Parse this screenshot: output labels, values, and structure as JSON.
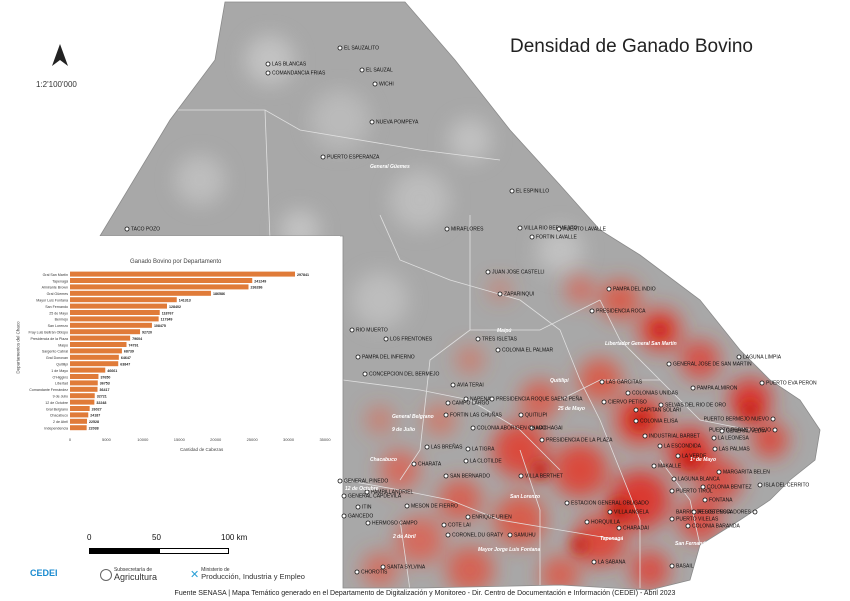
{
  "title": "Densidad de Ganado Bovino",
  "scale_ratio": "1:2'100'000",
  "scale_bar": {
    "labels": [
      "0",
      "50",
      "100 km"
    ]
  },
  "footer": "Fuente SENASA | Mapa Temático generado en el Departamento de Digitalización y Monitoreo - Dir. Centro de Documentación e Información (CEDEI) - Abril 2023",
  "logos": {
    "cedei": "CEDEI",
    "agricultura_small": "Subsecretaría de",
    "agricultura": "Agricultura",
    "produccion_small": "Ministerio de",
    "produccion": "Producción, Industria y Empleo"
  },
  "colors": {
    "land": "#a9a9a9",
    "heat": "#e63a2a",
    "bar": "#e07b39",
    "sea": "#ffffff"
  },
  "north_icon": "north-arrow-icon",
  "places": [
    "EL SAUZALITO",
    "LAS BLANCAS",
    "EL SAUZAL",
    "COMANDANCIA FRIAS",
    "WICHI",
    "NUEVA POMPEYA",
    "PUERTO ESPERANZA",
    "EL ESPINILLO",
    "TACO POZO",
    "MIRAFLORES",
    "VILLA RIO BERMEJITO",
    "PUERTO LAVALLE",
    "FORTIN LAVALLE",
    "JUAN JOSE CASTELLI",
    "ZAPARINQUI",
    "PAMPA DEL INDIO",
    "PRESIDENCIA ROCA",
    "RIO MUERTO",
    "LOS FRENTONES",
    "TRES ISLETAS",
    "COLONIA EL PALMAR",
    "PAMPA DEL INFIERNO",
    "LAGUNA LIMPIA",
    "GENERAL JOSE DE SAN MARTIN",
    "CONCEPCION DEL BERMEJO",
    "LAS GARCITAS",
    "PAMPA ALMIRON",
    "PUERTO EVA PERON",
    "AVIA TERAI",
    "COLONIAS UNIDAS",
    "CIERVO PETISO",
    "CAMPO LARGO",
    "NAPENAY",
    "PRESIDENCIA ROQUE SAENZ PEÑA",
    "SELVAS DEL RIO DE ORO",
    "CAPITAN SOLARI",
    "COLONIA ELISA",
    "PUERTO BERMEJO NUEVO",
    "PUERTO BERMEJO VIEJO",
    "GENERAL VEDIA",
    "LA LEONESA",
    "LAS PALMAS",
    "QUITILIPI",
    "MACHAGAI",
    "FORTIN LAS CHUÑAS",
    "GANCEDO",
    "COLONIA ABORIGEN CHACO",
    "PRESIDENCIA DE LA PLAZA",
    "INDUSTRIAL BARBET",
    "LA ESCONDIDA",
    "LA VERDE",
    "LAS BREÑAS",
    "LA TIGRA",
    "LA CLOTILDE",
    "MAKALLE",
    "CHARATA",
    "MARGARITA BELEN",
    "ISLA DEL CERRITO",
    "LAGUNA BLANCA",
    "COLONIA BENITEZ",
    "SAN BERNARDO",
    "VILLA BERTHET",
    "GENERAL PINEDO",
    "GENERAL CAPDEVILA",
    "PAMPA LANDRIEL",
    "ESTACION GENERAL OBLIGADO",
    "FONTANA",
    "PUERTO TIROL",
    "BARRIO DE LOS PESCADORES",
    "ITIN",
    "HERMOSO CAMPO",
    "CORONEL DU GRATY",
    "SAMUHU",
    "ENRIQUE URIEN",
    "VILLA ANGELA",
    "COTE LAI",
    "HORQUILLA",
    "CHARADAI",
    "RESISTENCIA",
    "PUERTO VILELAS",
    "COLONIA BARANDA",
    "SANTA SYLVINA",
    "CHOROTIS",
    "LA SABANA",
    "BASAIL",
    "MESON DE FIERRO"
  ],
  "departments": [
    "General Güemes",
    "Libertador General San Martín",
    "Maipú",
    "Quitilipi",
    "25 de Mayo",
    "General Belgrano",
    "9 de Julio",
    "1º de Mayo",
    "Chacabuco",
    "12 de Octubre",
    "San Lorenzo",
    "2 de Abril",
    "Mayor Jorge Luis Fontana",
    "Tapenagá",
    "San Fernando"
  ],
  "chart_data": {
    "type": "bar",
    "orientation": "horizontal",
    "title": "Ganado Bovino por Departamento",
    "xlabel": "Cantidad de Cabezas",
    "ylabel": "Departamentos del Chaco",
    "xlim": [
      0,
      35000
    ],
    "xticks": [
      0,
      5000,
      10000,
      15000,
      20000,
      25000,
      30000,
      35000
    ],
    "categories": [
      "Gral San Martín",
      "Tapenagá",
      "Almirante Brown",
      "Gral Güemes",
      "Mayor Luis Fontana",
      "San Fernando",
      "25 de Mayo",
      "Bermejo",
      "San Lorenzo",
      "Fray Luis Beltrán Obispo",
      "Presidencia de la Plaza",
      "Maipú",
      "Sargento Cabral",
      "Gral Donovan",
      "Quitilipi",
      "1 de Mayo",
      "O'Higgins",
      "Libertad",
      "Comandante Fernández",
      "9 de Julio",
      "12 de Octubre",
      "Gral Belgrano",
      "Chacabuco",
      "2 de Abril",
      "Independencia"
    ],
    "values": [
      297841,
      241249,
      236286,
      186586,
      141313,
      128402,
      118767,
      117349,
      108475,
      92720,
      79604,
      74791,
      68739,
      64647,
      63847,
      46661,
      37650,
      36753,
      36417,
      32721,
      32248,
      26027,
      24187,
      22528,
      22038
    ],
    "value_labels": [
      "297841",
      "241249",
      "236286",
      "186586",
      "141313",
      "128402",
      "118767",
      "117349",
      "108475",
      "92720",
      "79604",
      "74791",
      "68739",
      "64647",
      "63847",
      "46661",
      "37650",
      "36753",
      "36417",
      "32721",
      "32248",
      "26027",
      "24187",
      "22528",
      "22038"
    ]
  }
}
